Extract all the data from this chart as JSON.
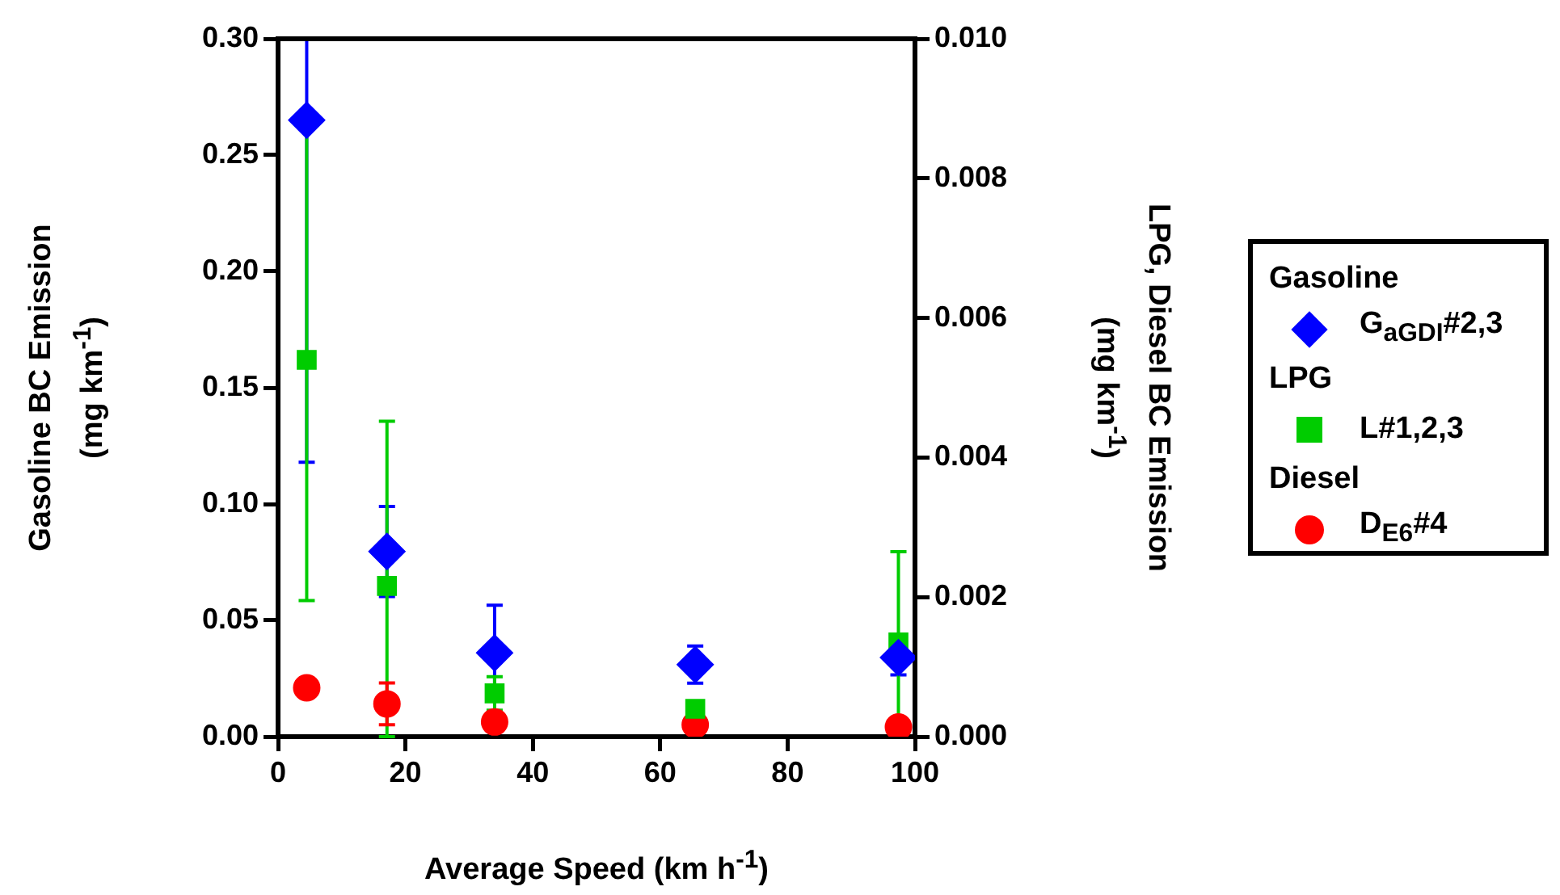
{
  "chart_data": {
    "type": "scatter",
    "xlabel": "Average Speed (km h$^{-1}$)",
    "ylabel": "Gasoline BC Emission\n(mg km$^{-1}$)",
    "y2label": "LPG, Diesel BC Emission\n(mg km$^{-1}$)",
    "annotations": [
      "Gasoline",
      "LPG",
      "Diesel"
    ],
    "xlim": [
      0,
      100
    ],
    "xticks": [
      0,
      20,
      40,
      60,
      80,
      100
    ],
    "ylim": [
      0,
      0.3
    ],
    "yticks": [
      {
        "value": 0,
        "label": "0.00"
      },
      {
        "value": 0.05,
        "label": "0.05"
      },
      {
        "value": 0.1,
        "label": "0.10"
      },
      {
        "value": 0.15,
        "label": "0.15"
      },
      {
        "value": 0.2,
        "label": "0.20"
      },
      {
        "value": 0.25,
        "label": "0.25"
      },
      {
        "value": 0.3,
        "label": "0.30"
      }
    ],
    "y2lim": [
      0,
      0.01
    ],
    "y2ticks": [
      {
        "value": 0,
        "label": "0.000"
      },
      {
        "value": 0.002,
        "label": "0.002"
      },
      {
        "value": 0.004,
        "label": "0.004"
      },
      {
        "value": 0.006,
        "label": "0.006"
      },
      {
        "value": 0.008,
        "label": "0.008"
      },
      {
        "value": 0.01,
        "label": "0.010"
      }
    ],
    "grid": false,
    "legend": "right",
    "series": [
      {
        "name": "G$_{aGDI}$#2,3",
        "color": "#0000ff",
        "marker": "diamond",
        "x": [
          4.5,
          17.1,
          34.0,
          65.5,
          97.4
        ],
        "values": [
          0.265,
          0.0796,
          0.036,
          0.031,
          0.034
        ],
        "errors": [
          [
            0.118,
            0.3
          ],
          0.0194,
          0.0205,
          0.008,
          0.0074
        ]
      },
      {
        "name": "L#1,2,3",
        "color": "#00cc00",
        "marker": "square",
        "axis": "y2",
        "x": [
          4.5,
          17.1,
          34.0,
          65.5,
          97.4
        ],
        "values": [
          0.0054,
          0.00216,
          0.00062,
          0.0004,
          0.00135
        ],
        "errors": [
          0.00345,
          [
            0,
            0.00452
          ],
          0.00024,
          null,
          0.0013
        ]
      },
      {
        "name": "D$_{E6}$#4",
        "color": "#ff0000",
        "marker": "circle",
        "axis": "y2",
        "x": [
          4.5,
          17.1,
          34.0,
          65.5,
          97.4
        ],
        "values": [
          0.0007,
          0.00047,
          0.00021,
          0.00017,
          0.00014
        ],
        "errors": [
          null,
          0.0003,
          null,
          null,
          null
        ]
      }
    ]
  }
}
